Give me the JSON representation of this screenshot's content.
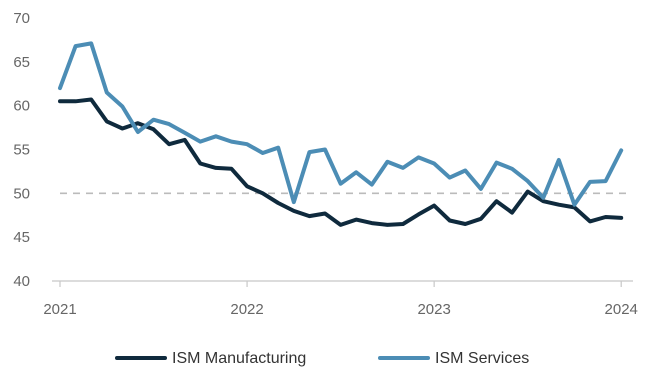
{
  "chart_data": {
    "type": "line",
    "title": "",
    "xlabel": "",
    "ylabel": "",
    "ylim": [
      40,
      70
    ],
    "yticks": [
      40,
      45,
      50,
      55,
      60,
      65,
      70
    ],
    "xticks": [
      {
        "label": "2021",
        "x": 0
      },
      {
        "label": "2022",
        "x": 12
      },
      {
        "label": "2023",
        "x": 24
      },
      {
        "label": "2024",
        "x": 36
      }
    ],
    "xlim": [
      0,
      36.5
    ],
    "reference_line": {
      "value": 50,
      "style": "dashed",
      "color": "#bbbbbb"
    },
    "legend_position": "bottom",
    "x": [
      0,
      1,
      2,
      3,
      4,
      5,
      6,
      7,
      8,
      9,
      10,
      11,
      12,
      13,
      14,
      15,
      16,
      17,
      18,
      19,
      20,
      21,
      22,
      23,
      24,
      25,
      26,
      27,
      28,
      29,
      30,
      31,
      32,
      33,
      34,
      35,
      36
    ],
    "series": [
      {
        "name": "ISM Manufacturing",
        "color": "#0f2a3d",
        "values": [
          60.5,
          60.5,
          60.7,
          58.2,
          57.4,
          58.0,
          57.3,
          55.6,
          56.1,
          53.4,
          52.9,
          52.8,
          50.8,
          50.0,
          48.9,
          48.0,
          47.4,
          47.7,
          46.4,
          47.0,
          46.6,
          46.4,
          46.5,
          47.6,
          48.6,
          46.9,
          46.5,
          47.1,
          49.1,
          47.8,
          50.2,
          49.1,
          48.7,
          48.4,
          46.8,
          47.3,
          47.2
        ]
      },
      {
        "name": "ISM Services",
        "color": "#4c8db5",
        "values": [
          62.0,
          66.8,
          67.1,
          61.5,
          59.9,
          57.0,
          58.4,
          57.9,
          56.9,
          55.9,
          56.5,
          55.9,
          55.6,
          54.6,
          55.2,
          49.0,
          54.7,
          55.0,
          51.1,
          52.4,
          51.0,
          53.6,
          52.9,
          54.1,
          53.4,
          51.8,
          52.6,
          50.5,
          53.5,
          52.8,
          51.4,
          49.5,
          53.8,
          48.7,
          51.3,
          51.4,
          54.9
        ]
      }
    ]
  }
}
